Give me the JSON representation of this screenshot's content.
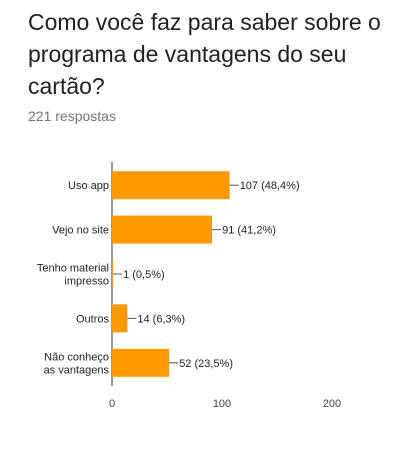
{
  "question": {
    "title": "Como você faz para saber sobre o programa de vantagens do seu cartão?",
    "responses": "221 respostas"
  },
  "chart_data": {
    "type": "bar",
    "orientation": "horizontal",
    "categories": [
      [
        "Uso app"
      ],
      [
        "Vejo no site"
      ],
      [
        "Tenho material",
        "impresso"
      ],
      [
        "Outros"
      ],
      [
        "Não conheço",
        "as vantagens"
      ]
    ],
    "values": [
      107,
      91,
      1,
      14,
      52
    ],
    "data_labels": [
      "107 (48,4%)",
      "91 (41,2%)",
      "1 (0,5%)",
      "14 (6,3%)",
      "52 (23,5%)"
    ],
    "xlim": [
      0,
      200
    ],
    "xticks": [
      0,
      100,
      200
    ],
    "bar_color": "#ff9900",
    "grid": false,
    "legend": "none"
  }
}
